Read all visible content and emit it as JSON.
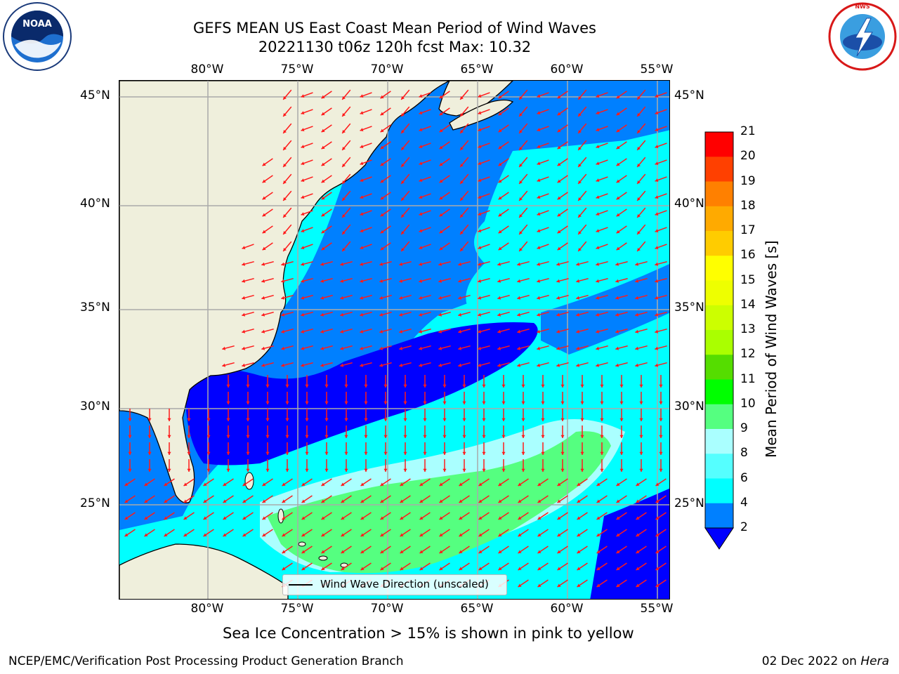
{
  "header": {
    "title_line1": "GEFS MEAN US East Coast Mean Period of Wind Waves",
    "title_line2": "20221130 t06z 120h fcst   Max: 10.32"
  },
  "logos": {
    "left": {
      "text": "NOAA",
      "ring_text": "NATIONAL OCEANIC AND ATMOSPHERIC ADMINISTRATION · U.S. DEPARTMENT OF COMMERCE"
    },
    "right": {
      "ring_text": "NATIONAL WEATHER SERVICE"
    }
  },
  "map": {
    "lon_labels": [
      "80°W",
      "75°W",
      "70°W",
      "65°W",
      "60°W",
      "55°W"
    ],
    "lat_labels": [
      "45°N",
      "40°N",
      "35°N",
      "30°N",
      "25°N"
    ],
    "colors": {
      "land": "#efefdc",
      "coast": "#000000",
      "arrow": "#ff1a1a",
      "grid": "#aaaaaa"
    }
  },
  "legend": {
    "label": "Wind Wave Direction (unscaled)"
  },
  "colorbar": {
    "label": "Mean Period of Wind Waves [s]",
    "ticks": [
      "2",
      "4",
      "6",
      "8",
      "9",
      "10",
      "11",
      "12",
      "13",
      "14",
      "15",
      "16",
      "17",
      "18",
      "19",
      "20",
      "21"
    ],
    "colors": [
      "#0000ff",
      "#0080ff",
      "#00ffff",
      "#55ffff",
      "#aaffff",
      "#55ff80",
      "#00ff00",
      "#55dd00",
      "#aaff00",
      "#ccff00",
      "#eeff00",
      "#ffff00",
      "#ffcc00",
      "#ffaa00",
      "#ff8000",
      "#ff4000",
      "#ff0000"
    ]
  },
  "notes": {
    "sea_ice": "Sea Ice Concentration > 15% is shown in pink to yellow",
    "producer": "NCEP/EMC/Verification Post Processing Product Generation Branch",
    "date": "02 Dec 2022 on ",
    "host": "Hera"
  }
}
